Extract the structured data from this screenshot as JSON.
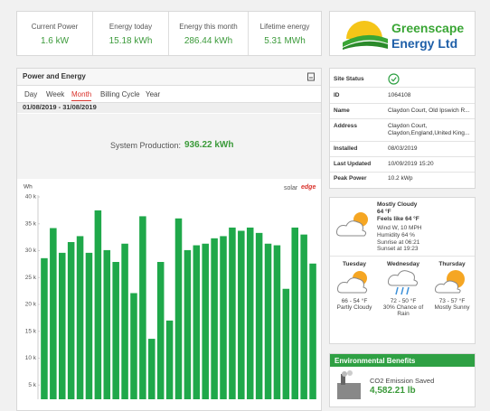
{
  "stats": [
    {
      "label": "Current Power",
      "value": "1.6 kW"
    },
    {
      "label": "Energy today",
      "value": "15.18 kWh"
    },
    {
      "label": "Energy this month",
      "value": "286.44 kWh"
    },
    {
      "label": "Lifetime energy",
      "value": "5.31 MWh"
    }
  ],
  "logo": {
    "line1": "Greenscape",
    "line2": "Energy Ltd"
  },
  "power_panel": {
    "title": "Power and Energy",
    "tabs": [
      "Day",
      "Week",
      "Month",
      "Billing Cycle",
      "Year"
    ],
    "date_range": "01/08/2019 - 31/08/2019",
    "production_label": "System Production:",
    "production_value": "936.22 kWh",
    "brand_1": "solar",
    "brand_2": "edge"
  },
  "chart_data": {
    "type": "bar",
    "y_unit": "Wh",
    "color": "#1fa84a",
    "values": [
      28600,
      34200,
      29600,
      31600,
      32700,
      29600,
      37500,
      30100,
      27900,
      31300,
      22100,
      36400,
      13600,
      27900,
      17000,
      36000,
      30100,
      31000,
      31300,
      32300,
      32700,
      34300,
      33700,
      34300,
      33300,
      31300,
      31000,
      22900,
      34300,
      33000,
      27600
    ],
    "ylim": [
      0,
      40000
    ],
    "yticks": [
      {
        "value": 5000,
        "label": "5 k"
      },
      {
        "value": 10000,
        "label": "10 k"
      },
      {
        "value": 15000,
        "label": "15 k"
      },
      {
        "value": 20000,
        "label": "20 k"
      },
      {
        "value": 25000,
        "label": "25 k"
      },
      {
        "value": 30000,
        "label": "30 k"
      },
      {
        "value": 35000,
        "label": "35 k"
      },
      {
        "value": 40000,
        "label": "40 k"
      }
    ]
  },
  "site": {
    "rows": [
      [
        "Site Status",
        ""
      ],
      [
        "ID",
        "1064108"
      ],
      [
        "Name",
        "Claydon Court, Old Ipswich R..."
      ],
      [
        "Address",
        "Claydon Court,"
      ],
      [
        "",
        "Claydon,England,United King..."
      ],
      [
        "Installed",
        "08/03/2019"
      ],
      [
        "Last Updated",
        "10/09/2019 15:20"
      ],
      [
        "Peak Power",
        "10.2 kWp"
      ]
    ]
  },
  "weather": {
    "condition": "Mostly Cloudy",
    "temp": "64 °F",
    "feels": "Feels like 64 °F",
    "wind": "Wind W, 10 MPH",
    "humidity": "Humidity 64 %",
    "sunrise": "Sunrise at 06:21",
    "sunset": "Sunset at 19:23",
    "forecast": [
      {
        "day": "Tuesday",
        "temp": "66 - 54 °F",
        "desc": "Partly Cloudy"
      },
      {
        "day": "Wednesday",
        "temp": "72 - 50 °F",
        "desc": "30% Chance of Rain"
      },
      {
        "day": "Thursday",
        "temp": "73 - 57 °F",
        "desc": "Mostly Sunny"
      }
    ]
  },
  "env": {
    "title": "Environmental Benefits",
    "co2_label": "CO2 Emission Saved",
    "co2_value": "4,582.21 lb"
  }
}
